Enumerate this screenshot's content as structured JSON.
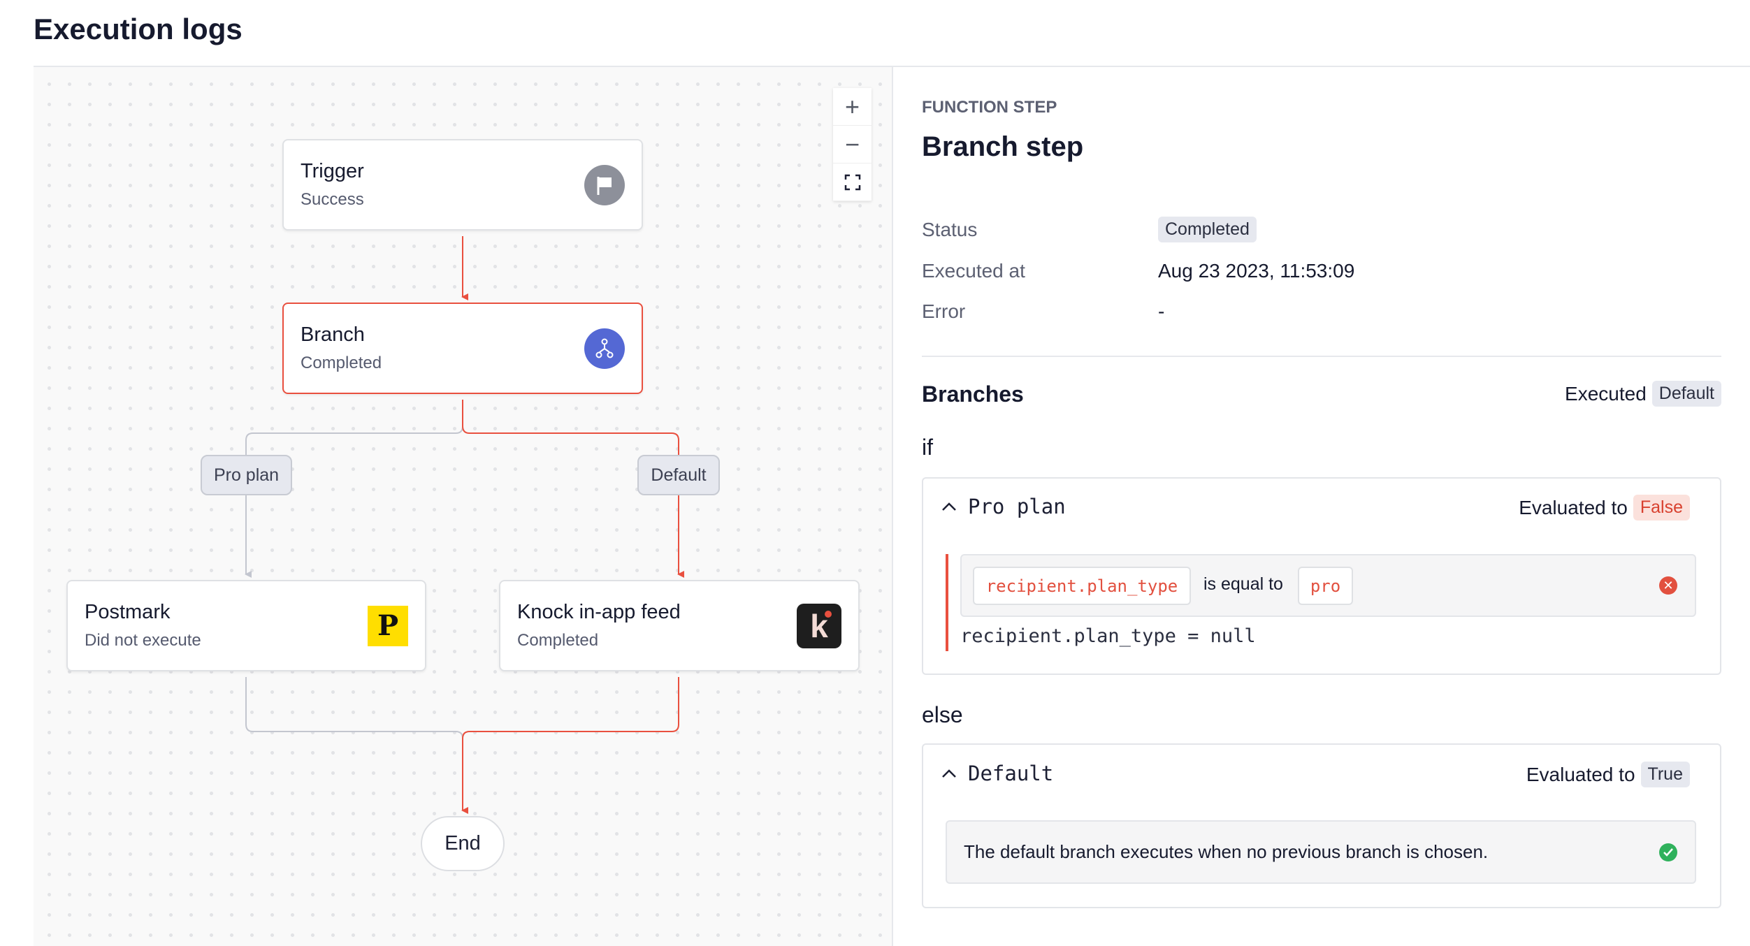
{
  "page": {
    "title": "Execution logs"
  },
  "canvas": {
    "zoom_in": "+",
    "zoom_out": "−",
    "nodes": [
      {
        "title": "Trigger",
        "status": "Success",
        "icon": "flag-icon"
      },
      {
        "title": "Branch",
        "status": "Completed",
        "icon": "branch-icon"
      },
      {
        "title": "Postmark",
        "status": "Did not execute",
        "icon": "postmark-logo",
        "logo_text": "P"
      },
      {
        "title": "Knock in-app feed",
        "status": "Completed",
        "icon": "knock-logo",
        "logo_text": "k"
      }
    ],
    "edge_labels": [
      "Pro plan",
      "Default"
    ],
    "end_label": "End",
    "colors": {
      "active_edge": "#e9503f",
      "inactive_edge": "#c3c6cf",
      "branch_icon": "#5468d4"
    }
  },
  "panel": {
    "eyebrow": "FUNCTION STEP",
    "title": "Branch step",
    "fields": [
      {
        "label": "Status",
        "value": "Completed"
      },
      {
        "label": "Executed at",
        "value": "Aug 23 2023, 11:53:09"
      },
      {
        "label": "Error",
        "value": "-"
      }
    ],
    "branches": {
      "heading": "Branches",
      "executed_label": "Executed",
      "executed_value": "Default",
      "if_label": "if",
      "else_label": "else",
      "if_branch": {
        "name": "Pro plan",
        "evaluated_label": "Evaluated to",
        "result": "False",
        "condition": {
          "left": "recipient.plan_type",
          "operator": "is equal to",
          "right": "pro"
        },
        "actual": "recipient.plan_type = null"
      },
      "else_branch": {
        "name": "Default",
        "evaluated_label": "Evaluated to",
        "result": "True",
        "description": "The default branch executes when no previous branch is chosen."
      }
    }
  }
}
